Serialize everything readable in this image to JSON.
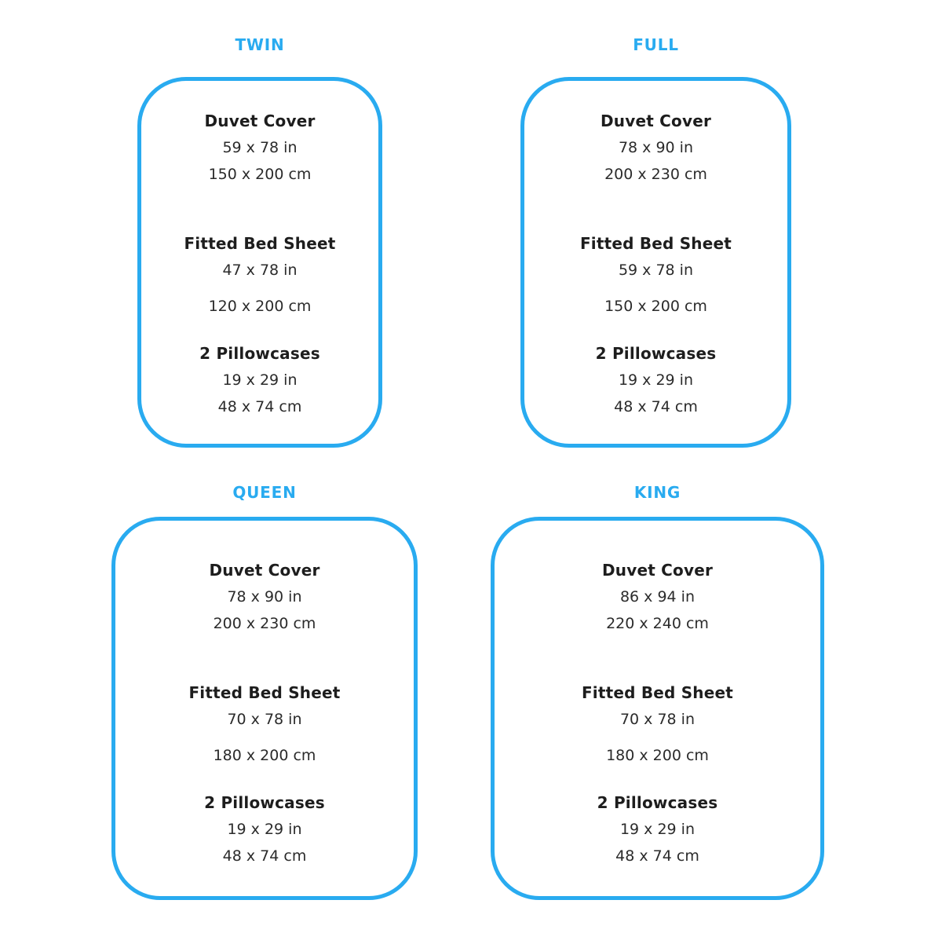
{
  "colors": {
    "accent": "#29abf0",
    "heading_text": "#1d1d1d",
    "value_text": "#2b2b2b",
    "background": "#ffffff"
  },
  "sizes": [
    {
      "id": "twin",
      "label": "TWIN",
      "items": [
        {
          "name": "Duvet Cover",
          "inches": "59 x 78 in",
          "cm": "150 x 200 cm"
        },
        {
          "name": "Fitted Bed Sheet",
          "inches": "47 x 78 in",
          "cm": "120 x 200 cm"
        },
        {
          "name": "2 Pillowcases",
          "inches": "19 x 29 in",
          "cm": "48 x 74 cm"
        }
      ]
    },
    {
      "id": "full",
      "label": "FULL",
      "items": [
        {
          "name": "Duvet Cover",
          "inches": "78 x 90 in",
          "cm": "200 x 230 cm"
        },
        {
          "name": "Fitted Bed Sheet",
          "inches": "59 x 78 in",
          "cm": "150 x 200 cm"
        },
        {
          "name": "2 Pillowcases",
          "inches": "19 x 29 in",
          "cm": "48 x 74 cm"
        }
      ]
    },
    {
      "id": "queen",
      "label": "QUEEN",
      "items": [
        {
          "name": "Duvet Cover",
          "inches": "78 x 90 in",
          "cm": "200 x 230 cm"
        },
        {
          "name": "Fitted Bed Sheet",
          "inches": "70 x 78 in",
          "cm": "180 x 200 cm"
        },
        {
          "name": "2 Pillowcases",
          "inches": "19 x 29 in",
          "cm": "48 x 74 cm"
        }
      ]
    },
    {
      "id": "king",
      "label": "KING",
      "items": [
        {
          "name": "Duvet Cover",
          "inches": "86 x 94 in",
          "cm": "220 x 240 cm"
        },
        {
          "name": "Fitted Bed Sheet",
          "inches": "70 x 78 in",
          "cm": "180 x 200 cm"
        },
        {
          "name": "2 Pillowcases",
          "inches": "19 x 29 in",
          "cm": "48 x 74 cm"
        }
      ]
    }
  ]
}
